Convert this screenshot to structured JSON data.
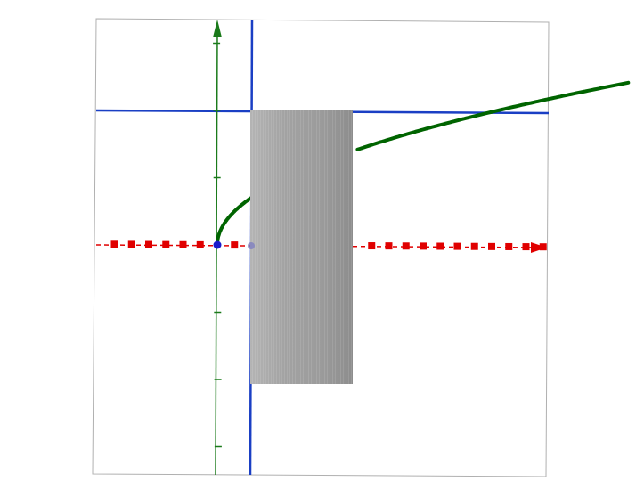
{
  "scene": {
    "type": "3d-plot-view",
    "description_visible_text": ""
  },
  "chart_data": {
    "type": "line",
    "title": "",
    "xlabel": "",
    "ylabel": "",
    "x_range": [
      -2,
      6.5
    ],
    "y_range": [
      -3.5,
      3.3
    ],
    "x_ticks": [
      -1.5,
      -1.25,
      -1,
      -0.75,
      -0.5,
      -0.25,
      0.25,
      0.5,
      0.75,
      1,
      1.25,
      1.5,
      1.75,
      2.25,
      2.5,
      2.75,
      3,
      3.25,
      3.5,
      3.75,
      4,
      4.25,
      4.5,
      4.75
    ],
    "y_ticks": [
      -3,
      -2,
      -1,
      1,
      2,
      3
    ],
    "series": [
      {
        "name": "curve",
        "function": "y = sqrt(x)",
        "color": "#006400",
        "x": [
          0,
          0.05,
          0.15,
          0.3,
          0.5,
          1.0,
          1.5,
          2.05,
          3.0,
          4.0,
          5.0,
          6.0
        ],
        "y": [
          0,
          0.224,
          0.387,
          0.548,
          0.707,
          1.0,
          1.225,
          1.432,
          1.732,
          2.0,
          2.236,
          2.449
        ]
      }
    ],
    "reference_lines": [
      {
        "name": "vertical-line",
        "orientation": "vertical",
        "value": 0.5,
        "color": "#1a3fc4"
      },
      {
        "name": "horizontal-line",
        "orientation": "horizontal",
        "value": 2,
        "color": "#1a3fc4"
      }
    ],
    "solid": {
      "name": "cylinder-slab",
      "axis_from_x": 0.5,
      "axis_to_x": 2.05,
      "radius": 2,
      "color": "#a9a9a9"
    },
    "axes_colors": {
      "x_axis": "#e00000",
      "y_axis": "#1a7a1a",
      "origin_point": "#1a1acc",
      "marker_point": "#8080c0"
    }
  }
}
